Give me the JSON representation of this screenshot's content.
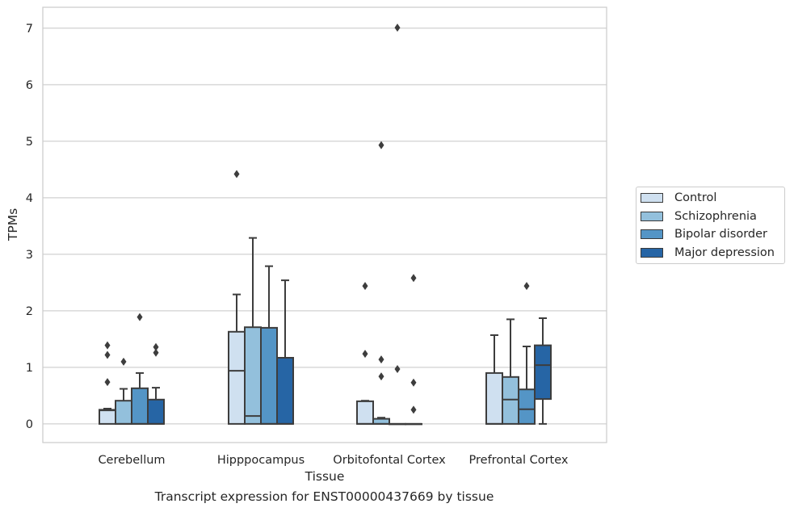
{
  "chart_data": {
    "type": "box",
    "title": "",
    "xlabel": "Tissue",
    "ylabel": "TPMs",
    "caption": "Transcript expression for ENST00000437669 by tissue",
    "ylim": [
      -0.33,
      7.37
    ],
    "yticks": [
      "0",
      "1",
      "2",
      "3",
      "4",
      "5",
      "6",
      "7"
    ],
    "grid": "horizontal",
    "legend_position": "right",
    "categories": [
      "Cerebellum",
      "Hipppocampus",
      "Orbitofontal Cortex",
      "Prefrontal Cortex"
    ],
    "series": [
      {
        "name": "Control",
        "color": "#cfe0f0",
        "boxes": [
          {
            "q1": 0.0,
            "median": 0.24,
            "q3": 0.25,
            "whisker_low": 0.0,
            "whisker_high": 0.27,
            "outliers": [
              0.74,
              1.22,
              1.39
            ]
          },
          {
            "q1": 0.0,
            "median": 0.94,
            "q3": 1.63,
            "whisker_low": 0.0,
            "whisker_high": 2.29,
            "outliers": [
              4.42
            ]
          },
          {
            "q1": 0.0,
            "median": 0.0,
            "q3": 0.4,
            "whisker_low": 0.0,
            "whisker_high": 0.41,
            "outliers": [
              1.24,
              2.44
            ]
          },
          {
            "q1": 0.0,
            "median": 0.0,
            "q3": 0.9,
            "whisker_low": 0.0,
            "whisker_high": 1.57,
            "outliers": []
          }
        ]
      },
      {
        "name": "Schizophrenia",
        "color": "#93c0dc",
        "boxes": [
          {
            "q1": 0.0,
            "median": 0.0,
            "q3": 0.41,
            "whisker_low": 0.0,
            "whisker_high": 0.62,
            "outliers": [
              1.1
            ]
          },
          {
            "q1": 0.0,
            "median": 0.14,
            "q3": 1.71,
            "whisker_low": 0.0,
            "whisker_high": 3.29,
            "outliers": []
          },
          {
            "q1": 0.0,
            "median": 0.0,
            "q3": 0.09,
            "whisker_low": 0.0,
            "whisker_high": 0.11,
            "outliers": [
              0.84,
              1.14,
              4.93
            ]
          },
          {
            "q1": 0.0,
            "median": 0.43,
            "q3": 0.83,
            "whisker_low": 0.0,
            "whisker_high": 1.85,
            "outliers": []
          }
        ]
      },
      {
        "name": "Bipolar disorder",
        "color": "#5495c6",
        "boxes": [
          {
            "q1": 0.0,
            "median": 0.0,
            "q3": 0.63,
            "whisker_low": 0.0,
            "whisker_high": 0.9,
            "outliers": [
              1.89
            ]
          },
          {
            "q1": 0.0,
            "median": 0.0,
            "q3": 1.7,
            "whisker_low": 0.0,
            "whisker_high": 2.79,
            "outliers": []
          },
          {
            "q1": 0.0,
            "median": 0.0,
            "q3": 0.0,
            "whisker_low": 0.0,
            "whisker_high": 0.0,
            "outliers": [
              0.97,
              7.01
            ]
          },
          {
            "q1": 0.0,
            "median": 0.26,
            "q3": 0.61,
            "whisker_low": 0.0,
            "whisker_high": 1.37,
            "outliers": [
              2.44
            ]
          }
        ]
      },
      {
        "name": "Major depression",
        "color": "#2665a5",
        "boxes": [
          {
            "q1": 0.0,
            "median": 0.0,
            "q3": 0.43,
            "whisker_low": 0.0,
            "whisker_high": 0.64,
            "outliers": [
              1.26,
              1.36
            ]
          },
          {
            "q1": 0.0,
            "median": 0.0,
            "q3": 1.17,
            "whisker_low": 0.0,
            "whisker_high": 2.54,
            "outliers": []
          },
          {
            "q1": 0.0,
            "median": 0.0,
            "q3": 0.0,
            "whisker_low": 0.0,
            "whisker_high": 0.0,
            "outliers": [
              0.25,
              0.73,
              2.58
            ]
          },
          {
            "q1": 0.44,
            "median": 1.04,
            "q3": 1.39,
            "whisker_low": 0.0,
            "whisker_high": 1.87,
            "outliers": []
          }
        ]
      }
    ]
  }
}
